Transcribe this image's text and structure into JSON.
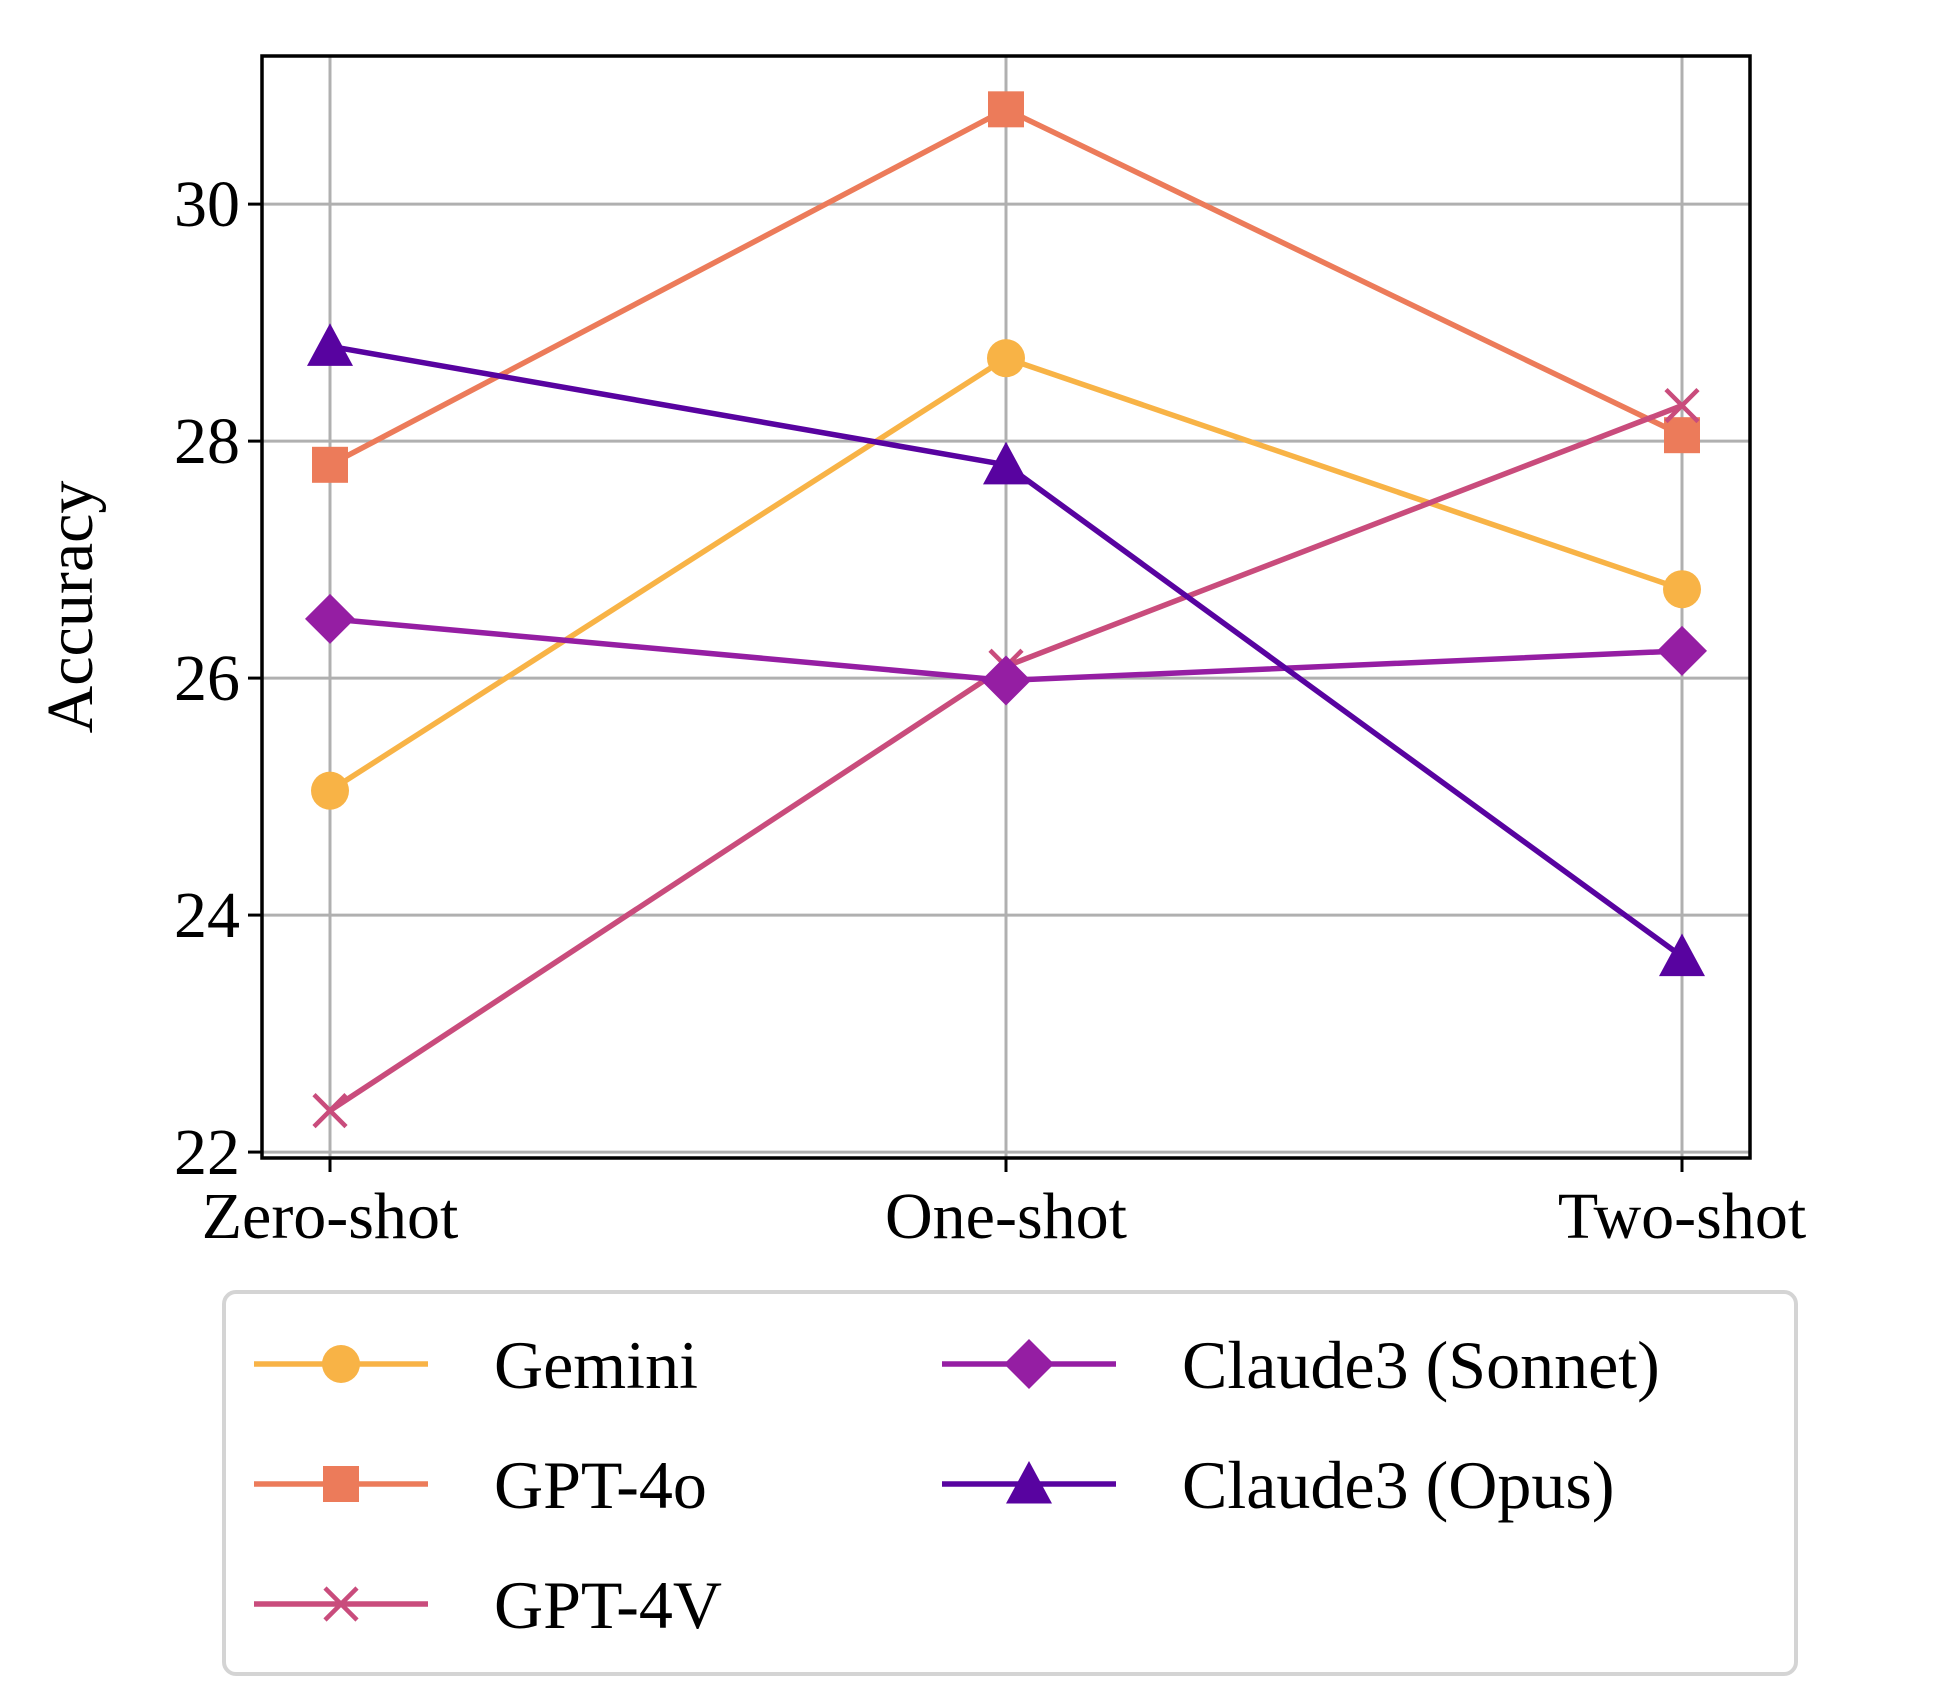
{
  "chart_data": {
    "type": "line",
    "title": "",
    "xlabel": "",
    "ylabel": "Accuracy",
    "categories": [
      "Zero-shot",
      "One-shot",
      "Two-shot"
    ],
    "ylim": [
      21.95,
      31.25
    ],
    "yticks": [
      22,
      24,
      26,
      28,
      30
    ],
    "grid": true,
    "legend_position": "bottom",
    "legend_columns": 2,
    "series": [
      {
        "name": "Gemini",
        "values": [
          25.05,
          28.7,
          26.75
        ],
        "color": "#f8b346",
        "marker": "circle"
      },
      {
        "name": "GPT-4o",
        "values": [
          27.8,
          30.8,
          28.05
        ],
        "color": "#ec7b5a",
        "marker": "square"
      },
      {
        "name": "GPT-4V",
        "values": [
          22.35,
          26.1,
          28.3
        ],
        "color": "#c94c7c",
        "marker": "x"
      },
      {
        "name": "Claude3 (Sonnet)",
        "values": [
          26.5,
          25.98,
          26.23
        ],
        "color": "#951ea3",
        "marker": "diamond"
      },
      {
        "name": "Claude3 (Opus)",
        "values": [
          28.8,
          27.8,
          23.65
        ],
        "color": "#5803a0",
        "marker": "triangle"
      }
    ]
  }
}
